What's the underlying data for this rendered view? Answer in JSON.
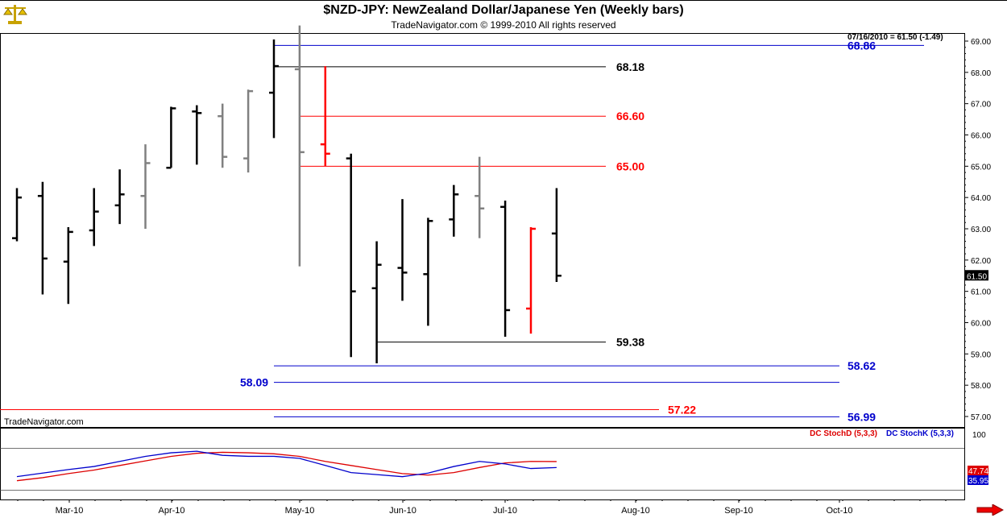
{
  "header": {
    "title": "$NZD-JPY:  NewZealand Dollar/Japanese Yen  (Weekly bars)",
    "subtitle": "TradeNavigator.com © 1999-2010 All rights reserved",
    "last_value_label": "07/16/2010 = 61.50 (-1.49)",
    "watermark": "TradeNavigator.com",
    "logo_icon": "scales-icon",
    "scroll_icon": "right-arrow-icon"
  },
  "colors": {
    "up_bar": "#000000",
    "down_bar": "#808080",
    "red_bar": "#ff0000",
    "blue_level": "#0000cc",
    "red_level": "#ff0000",
    "black_level": "#000000",
    "stoch_d": "#dd0000",
    "stoch_k": "#0000cc"
  },
  "chart_data": [
    {
      "type": "ohlc",
      "name": "price",
      "y_ticks": [
        "69.00",
        "68.00",
        "67.00",
        "66.00",
        "65.00",
        "64.00",
        "63.00",
        "62.00",
        "61.00",
        "60.00",
        "59.00",
        "58.00",
        "57.00"
      ],
      "ylim": [
        56.75,
        69.3
      ],
      "last_price_label": "61.50",
      "x_ticks": [
        "Mar-10",
        "Apr-10",
        "May-10",
        "Jun-10",
        "Jul-10",
        "Aug-10",
        "Sep-10",
        "Oct-10"
      ],
      "bars": [
        {
          "date": "2010-02-19",
          "open": 62.7,
          "high": 64.3,
          "low": 62.6,
          "close": 64.0,
          "color": "black"
        },
        {
          "date": "2010-02-26",
          "open": 64.05,
          "high": 64.5,
          "low": 60.9,
          "close": 62.05,
          "color": "black"
        },
        {
          "date": "2010-03-05",
          "open": 61.95,
          "high": 63.05,
          "low": 60.6,
          "close": 62.9,
          "color": "black"
        },
        {
          "date": "2010-03-12",
          "open": 62.95,
          "high": 64.3,
          "low": 62.45,
          "close": 63.55,
          "color": "black"
        },
        {
          "date": "2010-03-19",
          "open": 63.75,
          "high": 64.9,
          "low": 63.15,
          "close": 64.1,
          "color": "black"
        },
        {
          "date": "2010-03-26",
          "open": 64.05,
          "high": 65.7,
          "low": 63.0,
          "close": 65.1,
          "color": "gray"
        },
        {
          "date": "2010-04-02",
          "open": 64.95,
          "high": 66.9,
          "low": 64.95,
          "close": 66.85,
          "color": "black"
        },
        {
          "date": "2010-04-09",
          "open": 66.75,
          "high": 66.95,
          "low": 65.05,
          "close": 66.7,
          "color": "black"
        },
        {
          "date": "2010-04-16",
          "open": 66.6,
          "high": 67.0,
          "low": 64.95,
          "close": 65.3,
          "color": "gray"
        },
        {
          "date": "2010-04-23",
          "open": 65.25,
          "high": 67.45,
          "low": 64.8,
          "close": 67.4,
          "color": "gray"
        },
        {
          "date": "2010-04-30",
          "open": 67.35,
          "high": 69.05,
          "low": 65.9,
          "close": 68.2,
          "color": "black"
        },
        {
          "date": "2010-05-07",
          "open": 68.1,
          "high": 69.5,
          "low": 61.8,
          "close": 65.45,
          "color": "gray"
        },
        {
          "date": "2010-05-14",
          "open": 65.7,
          "high": 68.2,
          "low": 65.0,
          "close": 65.4,
          "color": "red"
        },
        {
          "date": "2010-05-21",
          "open": 65.25,
          "high": 65.4,
          "low": 58.9,
          "close": 61.0,
          "color": "black"
        },
        {
          "date": "2010-05-28",
          "open": 61.1,
          "high": 62.6,
          "low": 58.7,
          "close": 61.85,
          "color": "black"
        },
        {
          "date": "2010-06-04",
          "open": 61.75,
          "high": 63.95,
          "low": 60.7,
          "close": 61.6,
          "color": "black"
        },
        {
          "date": "2010-06-11",
          "open": 61.55,
          "high": 63.35,
          "low": 59.9,
          "close": 63.25,
          "color": "black"
        },
        {
          "date": "2010-06-18",
          "open": 63.3,
          "high": 64.4,
          "low": 62.75,
          "close": 64.1,
          "color": "black"
        },
        {
          "date": "2010-06-25",
          "open": 64.05,
          "high": 65.3,
          "low": 62.7,
          "close": 63.65,
          "color": "gray"
        },
        {
          "date": "2010-07-02",
          "open": 63.7,
          "high": 63.9,
          "low": 59.55,
          "close": 60.4,
          "color": "black"
        },
        {
          "date": "2010-07-09",
          "open": 60.45,
          "high": 63.05,
          "low": 59.65,
          "close": 63.0,
          "color": "red"
        },
        {
          "date": "2010-07-16",
          "open": 62.85,
          "high": 64.3,
          "low": 61.3,
          "close": 61.5,
          "color": "black"
        }
      ],
      "levels": [
        {
          "label": "68.86",
          "value": 68.86,
          "color": "blue",
          "label_side": "right"
        },
        {
          "label": "68.18",
          "value": 68.18,
          "color": "black",
          "label_side": "end"
        },
        {
          "label": "66.60",
          "value": 66.6,
          "color": "red",
          "label_side": "end"
        },
        {
          "label": "65.00",
          "value": 65.0,
          "color": "red",
          "label_side": "end"
        },
        {
          "label": "59.38",
          "value": 59.38,
          "color": "black",
          "label_side": "end"
        },
        {
          "label": "58.62",
          "value": 58.62,
          "color": "blue",
          "label_side": "right"
        },
        {
          "label": "58.09",
          "value": 58.09,
          "color": "blue",
          "label_side": "left"
        },
        {
          "label": "57.22",
          "value": 57.22,
          "color": "red",
          "label_side": "mid"
        },
        {
          "label": "56.99",
          "value": 56.99,
          "color": "blue",
          "label_side": "right"
        }
      ]
    },
    {
      "type": "line",
      "name": "stochastic",
      "y_ticks": [
        "100"
      ],
      "ylim": [
        0,
        100
      ],
      "legend": [
        "DC StochD (5,3,3)",
        "DC StochK (5,3,3)"
      ],
      "last_d_label": "47.74",
      "last_k_label": "35.95",
      "series": [
        {
          "name": "DC StochD (5,3,3)",
          "color": "red",
          "values": [
            10,
            16,
            24,
            31,
            40,
            49,
            58,
            64,
            66,
            65,
            63,
            58,
            48,
            40,
            32,
            24,
            21,
            26,
            36,
            45,
            48,
            47.74
          ]
        },
        {
          "name": "DC StochK (5,3,3)",
          "color": "blue",
          "values": [
            18,
            25,
            32,
            38,
            48,
            58,
            65,
            68,
            60,
            58,
            58,
            54,
            40,
            26,
            22,
            18,
            25,
            38,
            48,
            43,
            34,
            35.95
          ]
        }
      ]
    }
  ]
}
